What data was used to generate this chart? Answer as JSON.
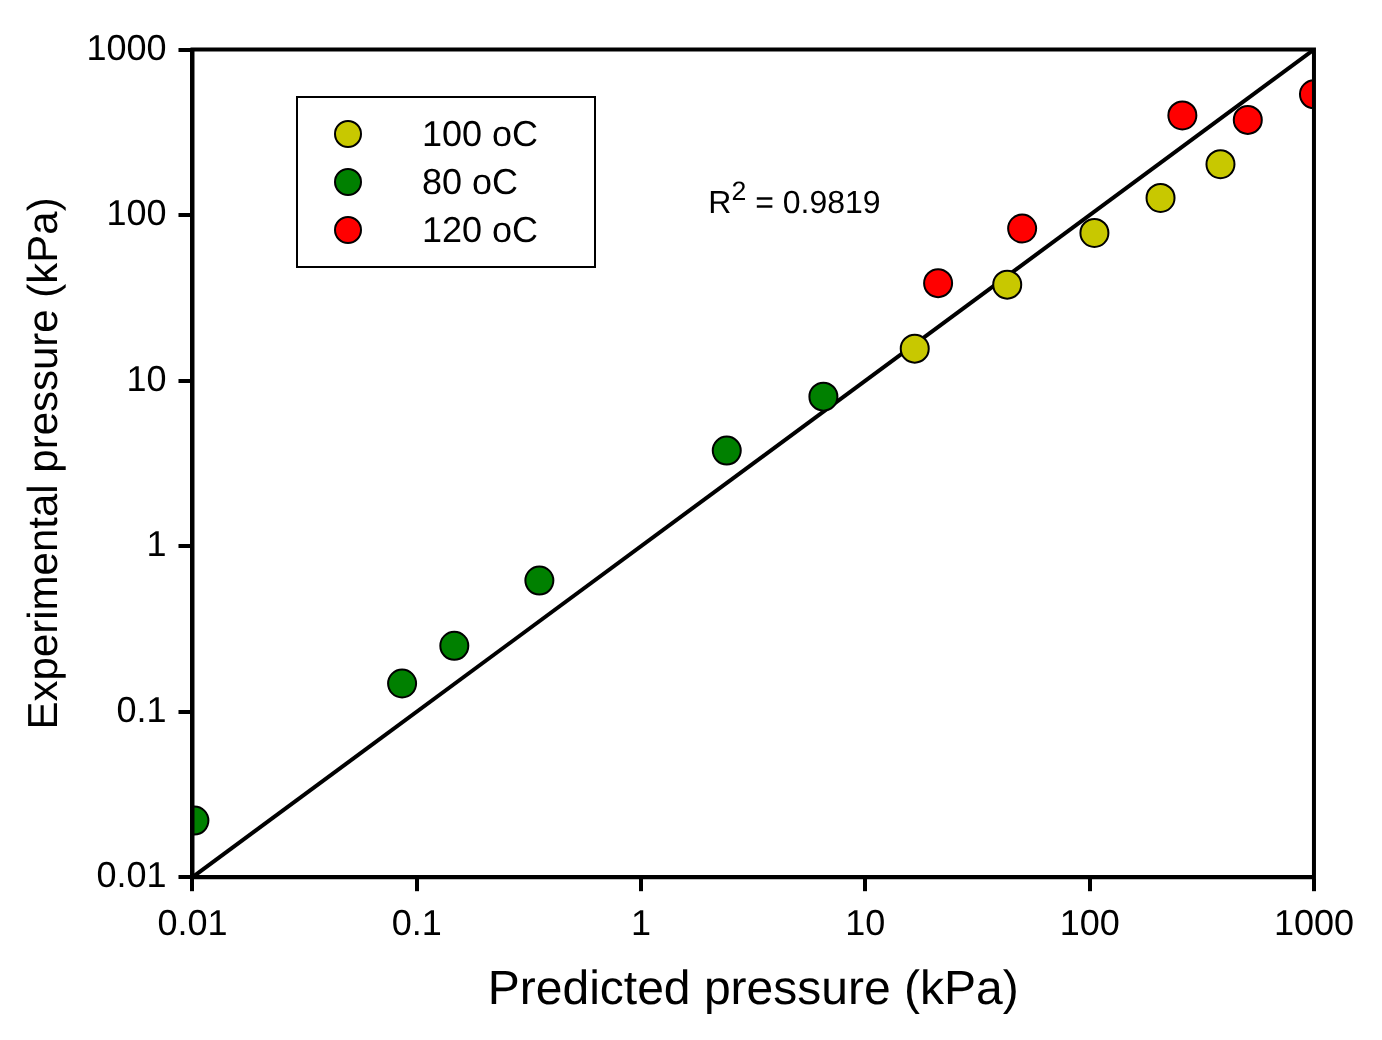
{
  "chart_data": {
    "type": "scatter",
    "xlabel": "Predicted pressure (kPa)",
    "ylabel": "Experimental pressure (kPa)",
    "log": "xy",
    "xlim": [
      0.01,
      1000
    ],
    "ylim": [
      0.01,
      1000
    ],
    "xticks": [
      0.01,
      0.1,
      1,
      10,
      100,
      1000
    ],
    "yticks": [
      0.01,
      0.1,
      1,
      10,
      100,
      1000
    ],
    "grid": false,
    "legend": "top left",
    "marker": "circle",
    "annotations": [
      "R$^{2}$ = 0.9819"
    ],
    "series": [
      {
        "name": "100 oC",
        "color": "#c8c800",
        "x": [
          16.6,
          42.9,
          105,
          207,
          383
        ],
        "values": [
          15.6,
          38,
          78,
          127,
          203
        ]
      },
      {
        "name": "80 oC",
        "color": "#008000",
        "x": [
          0.0102,
          0.086,
          0.147,
          0.352,
          2.41,
          6.5
        ],
        "values": [
          0.022,
          0.148,
          0.25,
          0.62,
          3.78,
          8.0
        ]
      },
      {
        "name": "120 oC",
        "color": "#ff0000",
        "x": [
          21.1,
          50,
          259,
          507,
          1000
        ],
        "values": [
          38.8,
          83,
          400,
          376,
          537
        ]
      },
      {
        "type": "line",
        "color": "#000000",
        "marker": "none",
        "x": [
          0.01,
          1000
        ],
        "values": [
          0.01,
          1000
        ]
      }
    ]
  }
}
